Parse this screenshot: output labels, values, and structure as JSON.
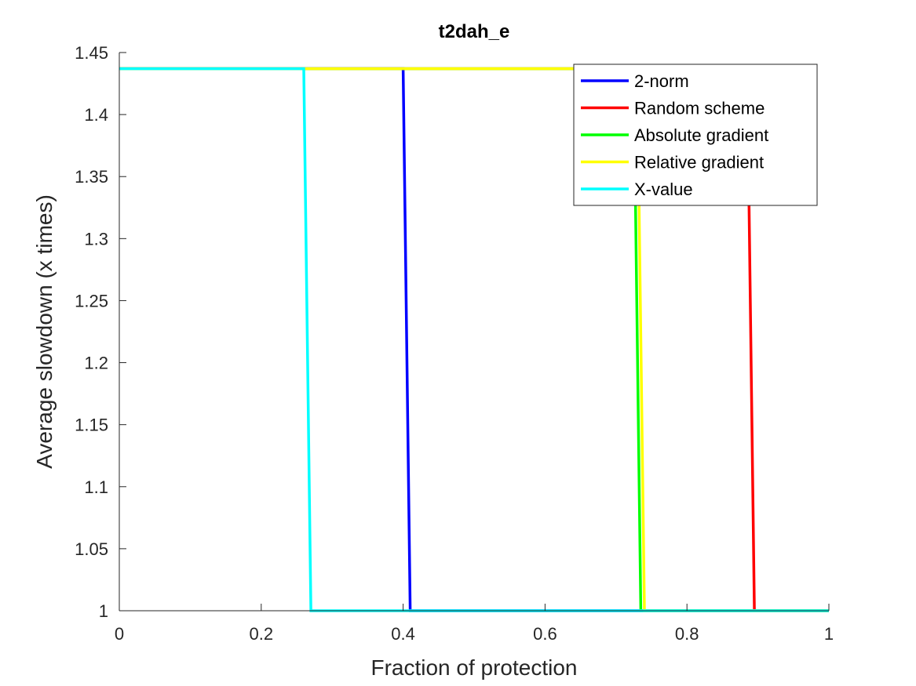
{
  "chart_data": {
    "type": "line",
    "title": "t2dah_e",
    "xlabel": "Fraction of protection",
    "ylabel": "Average slowdown (x times)",
    "xlim": [
      0,
      1
    ],
    "ylim": [
      1,
      1.45
    ],
    "xticks": [
      0,
      0.2,
      0.4,
      0.6,
      0.8,
      1
    ],
    "xtick_labels": [
      "0",
      "0.2",
      "0.4",
      "0.6",
      "0.8",
      "1"
    ],
    "yticks": [
      1,
      1.05,
      1.1,
      1.15,
      1.2,
      1.25,
      1.3,
      1.35,
      1.4,
      1.45
    ],
    "ytick_labels": [
      "1",
      "1.05",
      "1.1",
      "1.15",
      "1.2",
      "1.25",
      "1.3",
      "1.35",
      "1.4",
      "1.45"
    ],
    "grid": false,
    "legend_position": "top-right",
    "series": [
      {
        "name": "2-norm",
        "color": "#0000ff",
        "x": [
          0,
          0.4,
          0.41,
          1
        ],
        "y": [
          1.437,
          1.437,
          1,
          1
        ]
      },
      {
        "name": "Random scheme",
        "color": "#ff0000",
        "x": [
          0,
          0.885,
          0.895,
          1
        ],
        "y": [
          1.437,
          1.437,
          1,
          1
        ]
      },
      {
        "name": "Absolute gradient",
        "color": "#00ff00",
        "x": [
          0,
          0.725,
          0.735,
          1
        ],
        "y": [
          1.437,
          1.437,
          1,
          1
        ]
      },
      {
        "name": "Relative gradient",
        "color": "#ffff00",
        "x": [
          0,
          0.73,
          0.74,
          1
        ],
        "y": [
          1.437,
          1.437,
          1,
          1
        ]
      },
      {
        "name": "X-value",
        "color": "#00ffff",
        "x": [
          0,
          0.26,
          0.27,
          1
        ],
        "y": [
          1.437,
          1.437,
          1,
          1
        ]
      }
    ]
  }
}
